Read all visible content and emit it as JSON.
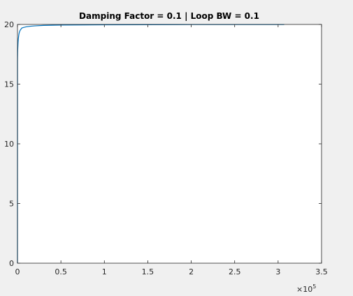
{
  "chart_data": {
    "type": "line",
    "title": "Damping Factor = 0.1 | Loop BW = 0.1",
    "xlabel": "",
    "ylabel": "",
    "xlim": [
      0,
      350000
    ],
    "ylim": [
      0,
      20
    ],
    "x_ticks": [
      0,
      50000,
      100000,
      150000,
      200000,
      250000,
      300000,
      350000
    ],
    "x_tick_labels": [
      "0",
      "0.5",
      "1",
      "1.5",
      "2",
      "2.5",
      "3",
      "3.5"
    ],
    "y_ticks": [
      0,
      5,
      10,
      15,
      20
    ],
    "y_tick_labels": [
      "0",
      "5",
      "10",
      "15",
      "20"
    ],
    "x_exponent_base": "×10",
    "x_exponent_power": "5",
    "grid": false,
    "legend": "none",
    "series": [
      {
        "color": "#0072bd",
        "x": [
          0,
          50,
          100,
          200,
          300,
          500,
          700,
          1000,
          1500,
          2000,
          3000,
          4000,
          5000,
          7000,
          10000,
          15000,
          20000,
          30000,
          50000,
          100000,
          150000,
          200000,
          250000,
          300000,
          307000
        ],
        "y": [
          0,
          16.9,
          17.2,
          17.6,
          17.9,
          18.2,
          18.5,
          18.8,
          19.1,
          19.3,
          19.5,
          19.6,
          19.7,
          19.75,
          19.8,
          19.85,
          19.88,
          19.92,
          19.95,
          19.97,
          19.98,
          19.99,
          19.99,
          19.99,
          19.99
        ]
      }
    ]
  }
}
